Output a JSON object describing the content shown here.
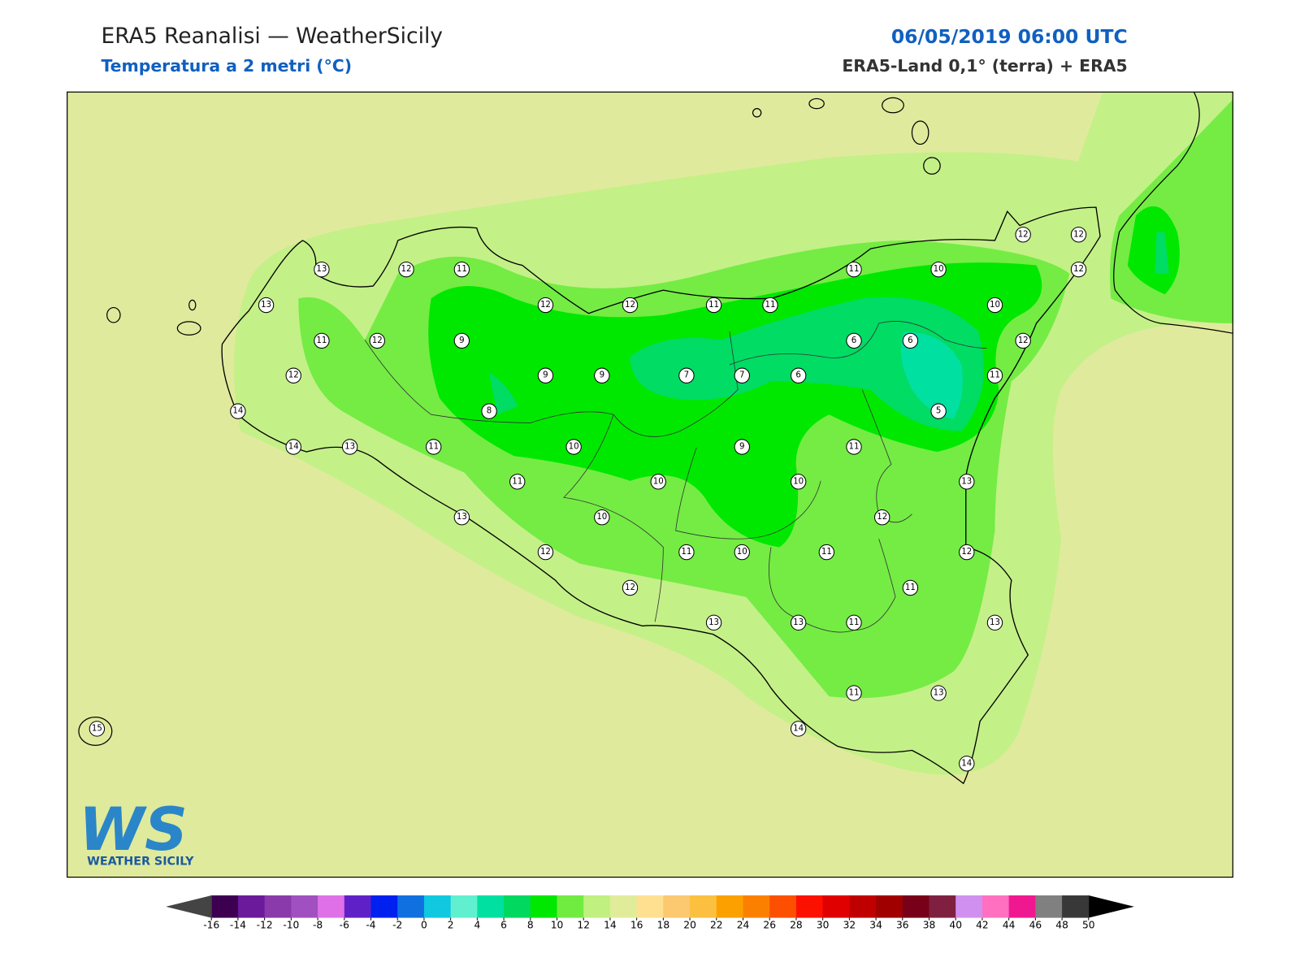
{
  "header": {
    "title": "ERA5 Reanalisi — WeatherSicily",
    "subtitle": "Temperatura a 2 metri (°C)",
    "datetime": "06/05/2019 06:00 UTC",
    "source": "ERA5-Land 0,1° (terra) + ERA5"
  },
  "stations": [
    13,
    12,
    11,
    13,
    11,
    12,
    9,
    12,
    14,
    14,
    13,
    11,
    8,
    9,
    9,
    12,
    12,
    11,
    11,
    11,
    10,
    12,
    12,
    12,
    10,
    6,
    6,
    12,
    7,
    7,
    6,
    11,
    5,
    10,
    9,
    11,
    11,
    10,
    10,
    13,
    13,
    10,
    12,
    12,
    11,
    10,
    11,
    12,
    12,
    11,
    13,
    13,
    11,
    13,
    11,
    13,
    14,
    14,
    15
  ],
  "logo": {
    "mark": "WS",
    "text": "WEATHER SICILY"
  },
  "colorbar": {
    "ticks": [
      -16,
      -14,
      -12,
      -10,
      -8,
      -6,
      -4,
      -2,
      0,
      2,
      4,
      6,
      8,
      10,
      12,
      14,
      16,
      18,
      20,
      22,
      24,
      26,
      28,
      30,
      32,
      34,
      36,
      38,
      40,
      42,
      44,
      46,
      48,
      50
    ],
    "colors": [
      "#3d0050",
      "#6a1a9a",
      "#8a3aaa",
      "#a050c0",
      "#e070e8",
      "#6020c8",
      "#0020f0",
      "#1070e0",
      "#10c8e0",
      "#60f0d0",
      "#00e0a0",
      "#00d860",
      "#00e800",
      "#70ec40",
      "#c0f080",
      "#e0ec9a",
      "#ffe090",
      "#fcc870",
      "#fcc040",
      "#fca000",
      "#fc8000",
      "#fc5000",
      "#fc1000",
      "#e00000",
      "#c00000",
      "#a00000",
      "#780018",
      "#802040",
      "#d090f0",
      "#ff70c0",
      "#f01890",
      "#808080",
      "#383838"
    ],
    "under_color": "#444444",
    "over_color": "#000000"
  }
}
